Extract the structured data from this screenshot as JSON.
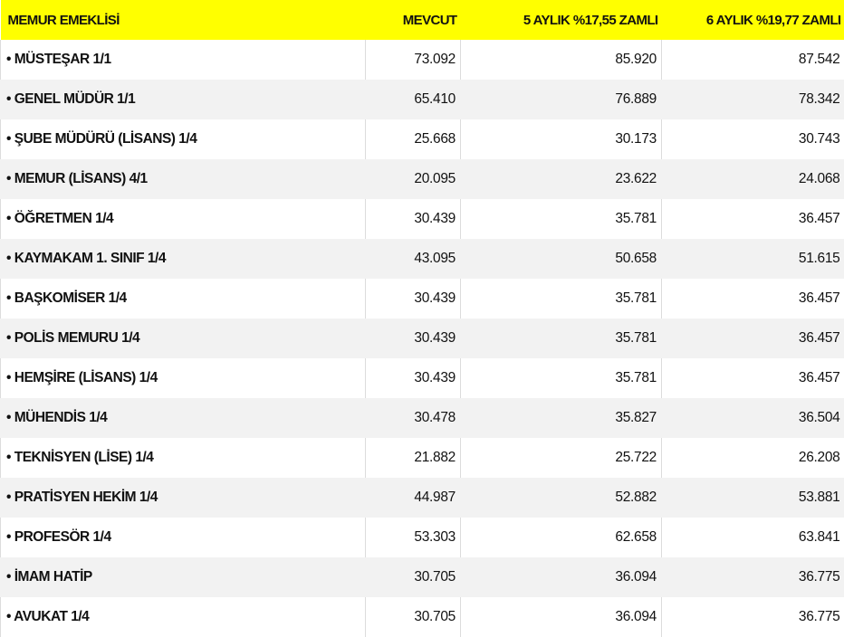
{
  "headers": [
    "MEMUR EMEKLİSİ",
    "MEVCUT",
    "5 AYLIK %17,55 ZAMLI",
    "6 AYLIK %19,77 ZAMLI"
  ],
  "header_color": "#ffff00",
  "bullet": "•",
  "rows": [
    {
      "name": "MÜSTEŞAR 1/1",
      "mevcut": "73.092",
      "ay5": "85.920",
      "ay6": "87.542"
    },
    {
      "name": "GENEL MÜDÜR 1/1",
      "mevcut": "65.410",
      "ay5": "76.889",
      "ay6": "78.342"
    },
    {
      "name": "ŞUBE MÜDÜRÜ (LİSANS) 1/4",
      "mevcut": "25.668",
      "ay5": "30.173",
      "ay6": "30.743"
    },
    {
      "name": "MEMUR (LİSANS) 4/1",
      "mevcut": "20.095",
      "ay5": "23.622",
      "ay6": "24.068"
    },
    {
      "name": "ÖĞRETMEN 1/4",
      "mevcut": "30.439",
      "ay5": "35.781",
      "ay6": "36.457"
    },
    {
      "name": "KAYMAKAM 1. SINIF 1/4",
      "mevcut": "43.095",
      "ay5": "50.658",
      "ay6": "51.615"
    },
    {
      "name": "BAŞKOMİSER 1/4",
      "mevcut": "30.439",
      "ay5": "35.781",
      "ay6": "36.457"
    },
    {
      "name": "POLİS MEMURU 1/4",
      "mevcut": "30.439",
      "ay5": "35.781",
      "ay6": "36.457"
    },
    {
      "name": "HEMŞİRE (LİSANS) 1/4",
      "mevcut": "30.439",
      "ay5": "35.781",
      "ay6": "36.457"
    },
    {
      "name": "MÜHENDİS 1/4",
      "mevcut": "30.478",
      "ay5": "35.827",
      "ay6": "36.504"
    },
    {
      "name": "TEKNİSYEN (LİSE) 1/4",
      "mevcut": "21.882",
      "ay5": "25.722",
      "ay6": "26.208"
    },
    {
      "name": "PRATİSYEN HEKİM 1/4",
      "mevcut": "44.987",
      "ay5": "52.882",
      "ay6": "53.881"
    },
    {
      "name": "PROFESÖR 1/4",
      "mevcut": "53.303",
      "ay5": "62.658",
      "ay6": "63.841"
    },
    {
      "name": "İMAM HATİP",
      "mevcut": "30.705",
      "ay5": "36.094",
      "ay6": "36.775"
    },
    {
      "name": "AVUKAT 1/4",
      "mevcut": "30.705",
      "ay5": "36.094",
      "ay6": "36.775"
    }
  ]
}
